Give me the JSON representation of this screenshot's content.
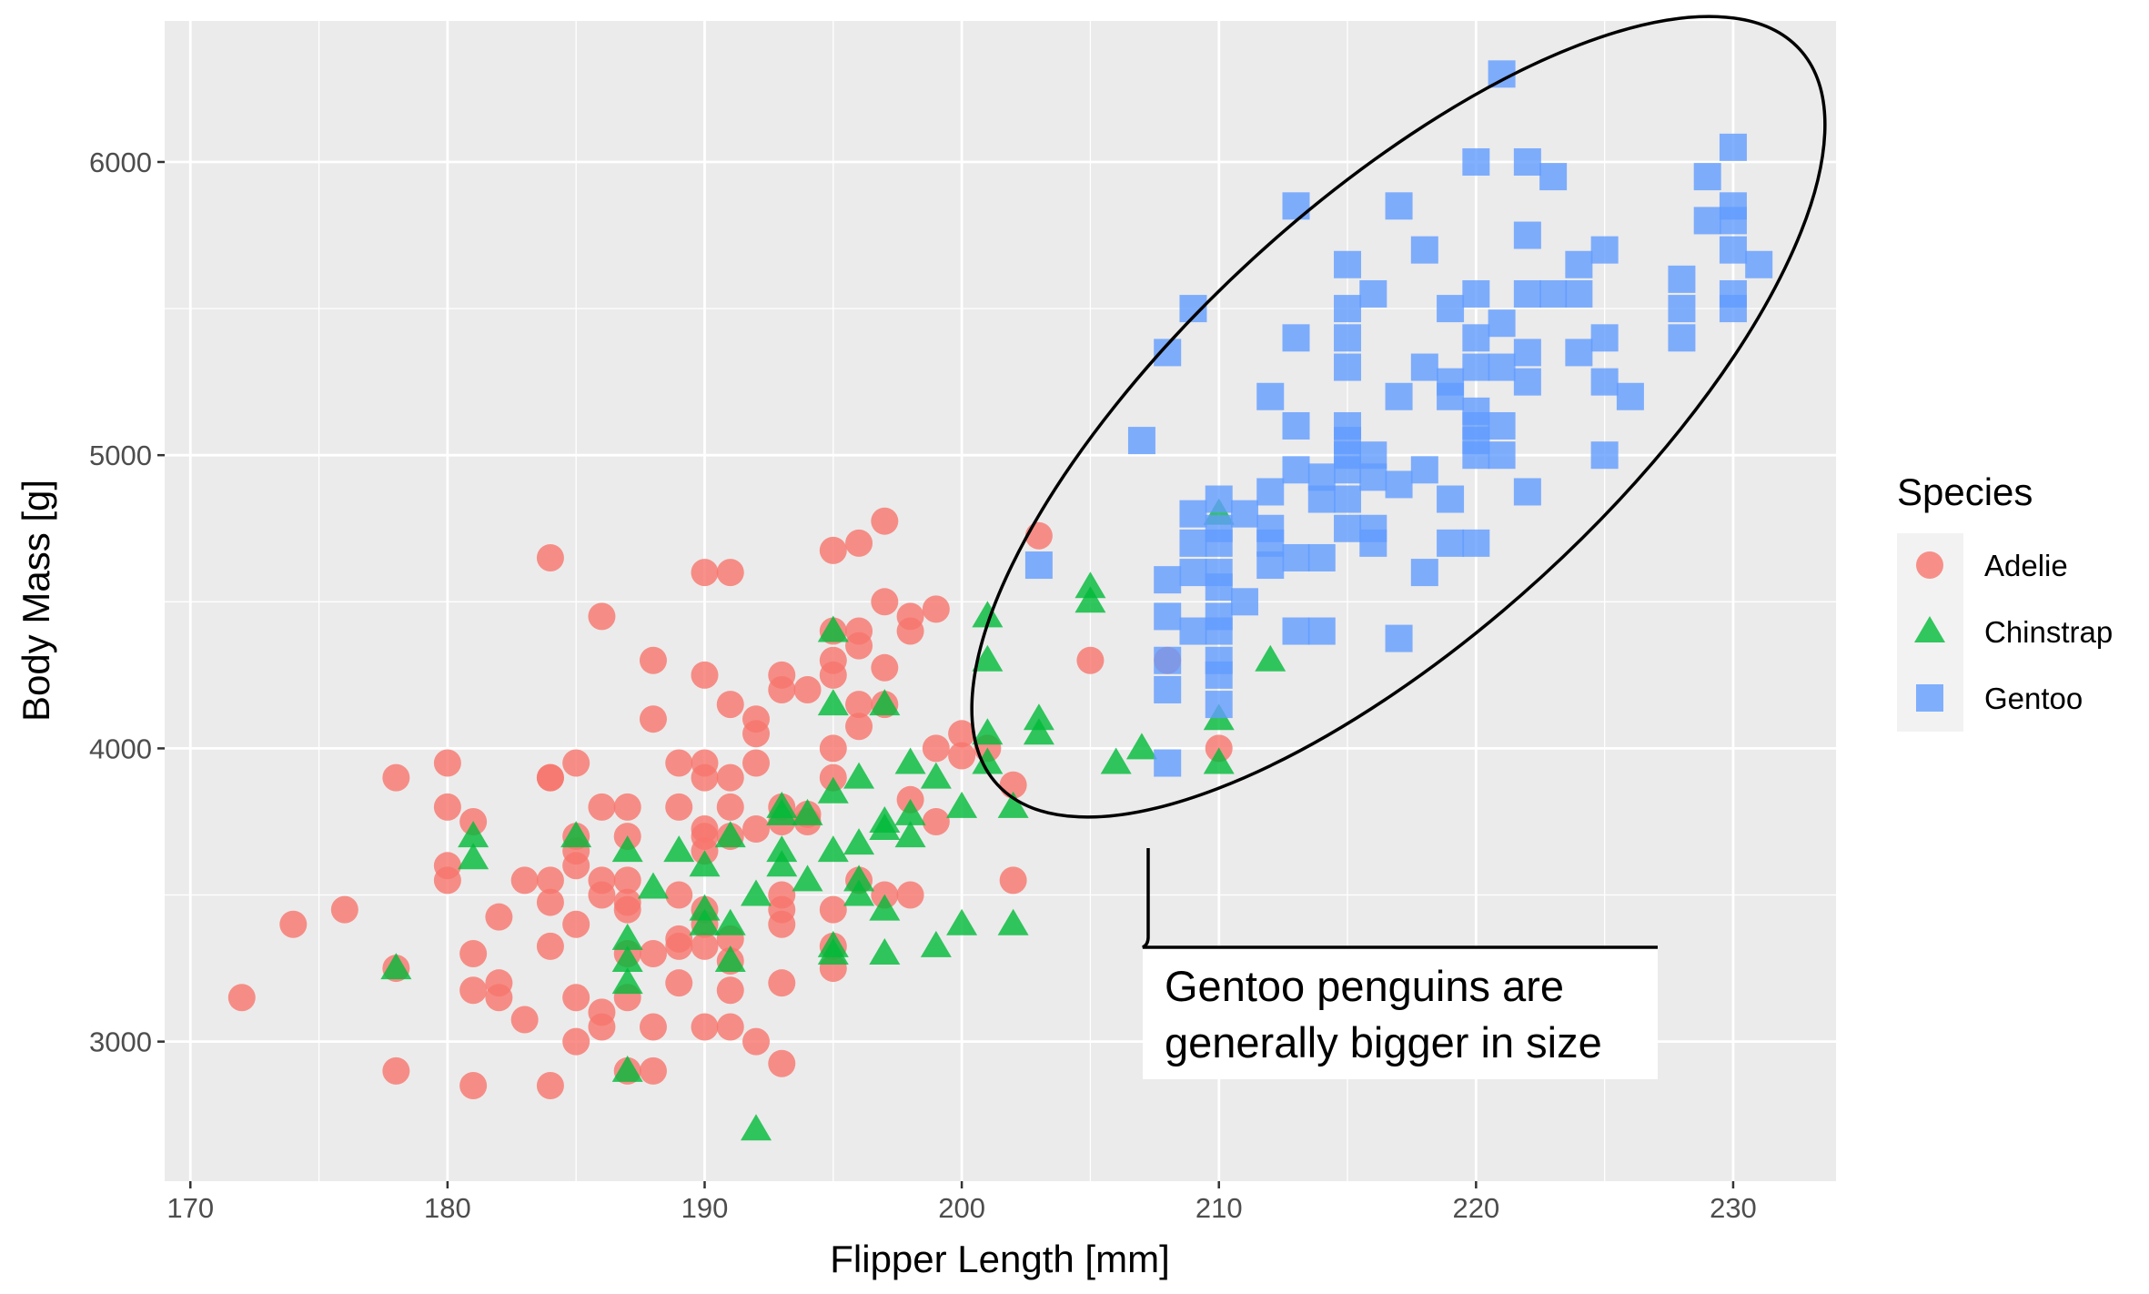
{
  "chart_data": {
    "type": "scatter",
    "title": "",
    "xlabel": "Flipper Length [mm]",
    "ylabel": "Body Mass [g]",
    "xlim": [
      169,
      234
    ],
    "ylim": [
      2524,
      6481
    ],
    "x_ticks": [
      170,
      180,
      190,
      200,
      210,
      220,
      230
    ],
    "y_ticks": [
      3000,
      4000,
      5000,
      6000
    ],
    "x_tick_labels": [
      "170",
      "180",
      "190",
      "200",
      "210",
      "220",
      "230"
    ],
    "y_tick_labels": [
      "3000",
      "4000",
      "5000",
      "6000"
    ],
    "grid": true,
    "legend": {
      "title": "Species",
      "placement": "right"
    },
    "annotation": {
      "lines": [
        "Gentoo penguins are",
        "generally bigger in size"
      ],
      "ellipse_around": "Gentoo"
    },
    "series": [
      {
        "name": "Adelie",
        "color": "#F8766D",
        "shape": "circle",
        "points": [
          [
            172,
            3150
          ],
          [
            174,
            3400
          ],
          [
            176,
            3450
          ],
          [
            178,
            3900
          ],
          [
            178,
            3250
          ],
          [
            178,
            2900
          ],
          [
            180,
            3950
          ],
          [
            180,
            3800
          ],
          [
            180,
            3600
          ],
          [
            180,
            3550
          ],
          [
            181,
            3750
          ],
          [
            181,
            3300
          ],
          [
            181,
            3175
          ],
          [
            181,
            2850
          ],
          [
            182,
            3200
          ],
          [
            182,
            3150
          ],
          [
            182,
            3425
          ],
          [
            183,
            3550
          ],
          [
            183,
            3075
          ],
          [
            184,
            4650
          ],
          [
            184,
            3900
          ],
          [
            184,
            3900
          ],
          [
            184,
            3550
          ],
          [
            184,
            3475
          ],
          [
            184,
            3325
          ],
          [
            184,
            2850
          ],
          [
            185,
            3950
          ],
          [
            185,
            3700
          ],
          [
            185,
            3650
          ],
          [
            185,
            3600
          ],
          [
            185,
            3400
          ],
          [
            185,
            3150
          ],
          [
            185,
            3000
          ],
          [
            186,
            4450
          ],
          [
            186,
            3800
          ],
          [
            186,
            3550
          ],
          [
            186,
            3500
          ],
          [
            186,
            3100
          ],
          [
            186,
            3050
          ],
          [
            187,
            3800
          ],
          [
            187,
            3700
          ],
          [
            187,
            3550
          ],
          [
            187,
            3475
          ],
          [
            187,
            3450
          ],
          [
            187,
            3300
          ],
          [
            187,
            3150
          ],
          [
            187,
            2900
          ],
          [
            188,
            4300
          ],
          [
            188,
            4100
          ],
          [
            188,
            3300
          ],
          [
            188,
            3050
          ],
          [
            188,
            2900
          ],
          [
            189,
            3950
          ],
          [
            189,
            3800
          ],
          [
            189,
            3500
          ],
          [
            189,
            3350
          ],
          [
            189,
            3325
          ],
          [
            189,
            3200
          ],
          [
            190,
            4600
          ],
          [
            190,
            4250
          ],
          [
            190,
            3950
          ],
          [
            190,
            3900
          ],
          [
            190,
            3725
          ],
          [
            190,
            3700
          ],
          [
            190,
            3650
          ],
          [
            190,
            3450
          ],
          [
            190,
            3400
          ],
          [
            190,
            3325
          ],
          [
            190,
            3050
          ],
          [
            191,
            4600
          ],
          [
            191,
            4150
          ],
          [
            191,
            3900
          ],
          [
            191,
            3800
          ],
          [
            191,
            3700
          ],
          [
            191,
            3350
          ],
          [
            191,
            3275
          ],
          [
            191,
            3175
          ],
          [
            191,
            3050
          ],
          [
            192,
            4100
          ],
          [
            192,
            4050
          ],
          [
            192,
            3950
          ],
          [
            192,
            3725
          ],
          [
            192,
            3000
          ],
          [
            193,
            4250
          ],
          [
            193,
            4200
          ],
          [
            193,
            3800
          ],
          [
            193,
            3750
          ],
          [
            193,
            3500
          ],
          [
            193,
            3450
          ],
          [
            193,
            3400
          ],
          [
            193,
            3200
          ],
          [
            193,
            2925
          ],
          [
            194,
            4200
          ],
          [
            194,
            3775
          ],
          [
            194,
            3750
          ],
          [
            195,
            4675
          ],
          [
            195,
            4400
          ],
          [
            195,
            4300
          ],
          [
            195,
            4250
          ],
          [
            195,
            4000
          ],
          [
            195,
            3900
          ],
          [
            195,
            3450
          ],
          [
            195,
            3325
          ],
          [
            195,
            3250
          ],
          [
            196,
            4700
          ],
          [
            196,
            4400
          ],
          [
            196,
            4350
          ],
          [
            196,
            4150
          ],
          [
            196,
            4075
          ],
          [
            196,
            3550
          ],
          [
            197,
            4775
          ],
          [
            197,
            4500
          ],
          [
            197,
            4275
          ],
          [
            197,
            4150
          ],
          [
            197,
            3500
          ],
          [
            198,
            4450
          ],
          [
            198,
            4400
          ],
          [
            198,
            3825
          ],
          [
            198,
            3500
          ],
          [
            199,
            4475
          ],
          [
            199,
            4000
          ],
          [
            199,
            3750
          ],
          [
            200,
            4050
          ],
          [
            200,
            3975
          ],
          [
            201,
            4000
          ],
          [
            202,
            3875
          ],
          [
            202,
            3550
          ],
          [
            203,
            4725
          ],
          [
            205,
            4300
          ],
          [
            208,
            4300
          ],
          [
            210,
            4000
          ]
        ]
      },
      {
        "name": "Chinstrap",
        "color": "#00BA38",
        "shape": "triangle",
        "points": [
          [
            178,
            3250
          ],
          [
            181,
            3700
          ],
          [
            181,
            3625
          ],
          [
            185,
            3700
          ],
          [
            187,
            3650
          ],
          [
            187,
            3350
          ],
          [
            187,
            3275
          ],
          [
            187,
            3200
          ],
          [
            187,
            2900
          ],
          [
            188,
            3525
          ],
          [
            189,
            3650
          ],
          [
            190,
            3600
          ],
          [
            190,
            3450
          ],
          [
            190,
            3400
          ],
          [
            191,
            3700
          ],
          [
            191,
            3400
          ],
          [
            191,
            3275
          ],
          [
            192,
            2700
          ],
          [
            192,
            3500
          ],
          [
            193,
            3800
          ],
          [
            193,
            3775
          ],
          [
            193,
            3650
          ],
          [
            193,
            3600
          ],
          [
            194,
            3550
          ],
          [
            194,
            3775
          ],
          [
            195,
            4400
          ],
          [
            195,
            4150
          ],
          [
            195,
            3850
          ],
          [
            195,
            3650
          ],
          [
            195,
            3325
          ],
          [
            195,
            3300
          ],
          [
            196,
            3900
          ],
          [
            196,
            3675
          ],
          [
            196,
            3550
          ],
          [
            196,
            3500
          ],
          [
            197,
            4150
          ],
          [
            197,
            3750
          ],
          [
            197,
            3725
          ],
          [
            197,
            3450
          ],
          [
            197,
            3300
          ],
          [
            198,
            3950
          ],
          [
            198,
            3775
          ],
          [
            198,
            3700
          ],
          [
            199,
            3900
          ],
          [
            199,
            3325
          ],
          [
            200,
            3800
          ],
          [
            200,
            3400
          ],
          [
            201,
            4450
          ],
          [
            201,
            4300
          ],
          [
            201,
            4050
          ],
          [
            201,
            3950
          ],
          [
            202,
            3800
          ],
          [
            202,
            3400
          ],
          [
            203,
            4100
          ],
          [
            203,
            4050
          ],
          [
            205,
            4550
          ],
          [
            205,
            4500
          ],
          [
            206,
            3950
          ],
          [
            207,
            4000
          ],
          [
            210,
            4800
          ],
          [
            210,
            4100
          ],
          [
            210,
            3950
          ],
          [
            212,
            4300
          ]
        ]
      },
      {
        "name": "Gentoo",
        "color": "#619CFF",
        "shape": "square",
        "points": [
          [
            203,
            4625
          ],
          [
            207,
            5050
          ],
          [
            208,
            5350
          ],
          [
            208,
            4575
          ],
          [
            208,
            4450
          ],
          [
            208,
            4300
          ],
          [
            208,
            4200
          ],
          [
            208,
            3950
          ],
          [
            209,
            5500
          ],
          [
            209,
            4800
          ],
          [
            209,
            4700
          ],
          [
            209,
            4600
          ],
          [
            209,
            4400
          ],
          [
            210,
            4850
          ],
          [
            210,
            4750
          ],
          [
            210,
            4700
          ],
          [
            210,
            4600
          ],
          [
            210,
            4550
          ],
          [
            210,
            4450
          ],
          [
            210,
            4400
          ],
          [
            210,
            4300
          ],
          [
            210,
            4250
          ],
          [
            210,
            4150
          ],
          [
            211,
            4800
          ],
          [
            211,
            4500
          ],
          [
            212,
            5200
          ],
          [
            212,
            4875
          ],
          [
            212,
            4750
          ],
          [
            212,
            4700
          ],
          [
            212,
            4625
          ],
          [
            213,
            5850
          ],
          [
            213,
            5400
          ],
          [
            213,
            5100
          ],
          [
            213,
            4950
          ],
          [
            213,
            4650
          ],
          [
            213,
            4400
          ],
          [
            214,
            4925
          ],
          [
            214,
            4850
          ],
          [
            214,
            4650
          ],
          [
            214,
            4400
          ],
          [
            215,
            5650
          ],
          [
            215,
            5500
          ],
          [
            215,
            5400
          ],
          [
            215,
            5300
          ],
          [
            215,
            5100
          ],
          [
            215,
            5050
          ],
          [
            215,
            5000
          ],
          [
            215,
            4950
          ],
          [
            215,
            4850
          ],
          [
            215,
            4750
          ],
          [
            216,
            5550
          ],
          [
            216,
            5000
          ],
          [
            216,
            4925
          ],
          [
            216,
            4750
          ],
          [
            216,
            4700
          ],
          [
            217,
            5850
          ],
          [
            217,
            5200
          ],
          [
            217,
            4900
          ],
          [
            217,
            4375
          ],
          [
            218,
            5700
          ],
          [
            218,
            5300
          ],
          [
            218,
            4950
          ],
          [
            218,
            4600
          ],
          [
            219,
            5500
          ],
          [
            219,
            5250
          ],
          [
            219,
            5200
          ],
          [
            219,
            4850
          ],
          [
            219,
            4700
          ],
          [
            220,
            6000
          ],
          [
            220,
            5550
          ],
          [
            220,
            5400
          ],
          [
            220,
            5300
          ],
          [
            220,
            5150
          ],
          [
            220,
            5100
          ],
          [
            220,
            5050
          ],
          [
            220,
            5000
          ],
          [
            220,
            4700
          ],
          [
            221,
            6300
          ],
          [
            221,
            5450
          ],
          [
            221,
            5300
          ],
          [
            221,
            5100
          ],
          [
            221,
            5000
          ],
          [
            222,
            6000
          ],
          [
            222,
            5750
          ],
          [
            222,
            5550
          ],
          [
            222,
            5350
          ],
          [
            222,
            5250
          ],
          [
            222,
            4875
          ],
          [
            223,
            5950
          ],
          [
            223,
            5550
          ],
          [
            224,
            5650
          ],
          [
            224,
            5550
          ],
          [
            224,
            5350
          ],
          [
            225,
            5700
          ],
          [
            225,
            5400
          ],
          [
            225,
            5250
          ],
          [
            225,
            5000
          ],
          [
            226,
            5200
          ],
          [
            228,
            5600
          ],
          [
            228,
            5500
          ],
          [
            228,
            5400
          ],
          [
            229,
            5950
          ],
          [
            229,
            5800
          ],
          [
            230,
            6050
          ],
          [
            230,
            5850
          ],
          [
            230,
            5800
          ],
          [
            230,
            5700
          ],
          [
            230,
            5550
          ],
          [
            230,
            5500
          ],
          [
            231,
            5650
          ]
        ]
      }
    ],
    "colors": {
      "panel": "#EBEBEB",
      "grid": "#FFFFFF",
      "tick_text": "#4D4D4D",
      "legend_key_bg": "#F2F2F2"
    }
  }
}
